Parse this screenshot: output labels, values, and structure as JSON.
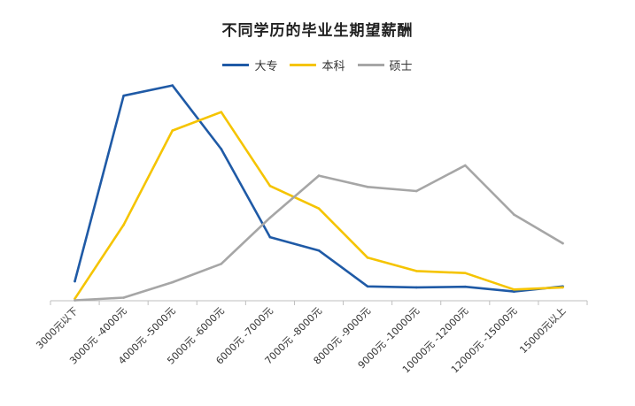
{
  "chart_data": {
    "type": "line",
    "title": "不同学历的毕业生期望薪酬",
    "categories": [
      "3000元以下",
      "3000元 -4000元",
      "4000元 -5000元",
      "5000元 -6000元",
      "6000元 -7000元",
      "7000元 -8000元",
      "8000元 -9000元",
      "9000元 -10000元",
      "10000元 -12000元",
      "12000元 -15000元",
      "15000元以上"
    ],
    "series": [
      {
        "name": "大专",
        "color": "#1f5aa6",
        "values": [
          9.5,
          100,
          105,
          74,
          31,
          24.5,
          7,
          6.5,
          6.8,
          4.5,
          7
        ]
      },
      {
        "name": "本科",
        "color": "#f5c400",
        "values": [
          1,
          37,
          83,
          92,
          56,
          45,
          21,
          14.5,
          13.5,
          5.5,
          6.5
        ]
      },
      {
        "name": "硕士",
        "color": "#a6a6a6",
        "values": [
          0.2,
          1.5,
          9,
          18,
          40.5,
          61,
          55.5,
          53.5,
          66,
          42,
          28
        ]
      }
    ],
    "xlabel": "",
    "ylabel": "",
    "ylim": [
      0,
      110
    ],
    "grid": false,
    "legend": "top-center"
  }
}
